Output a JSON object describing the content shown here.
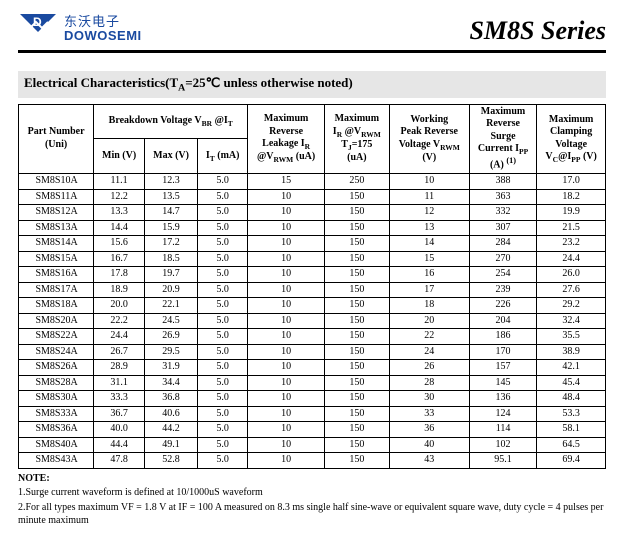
{
  "header": {
    "logo_cn": "东沃电子",
    "logo_en": "DOWOSEMI",
    "series_title": "SM8S Series"
  },
  "section_title_prefix": "Electrical Characteristics(T",
  "section_title_sub": "A",
  "section_title_suffix": "=25℃ unless otherwise noted)",
  "table": {
    "columns": {
      "pn": "Part Number\n(Uni)",
      "bv_group": "Breakdown Voltage V",
      "bv_group_sub1": "BR",
      "bv_group_mid": " @I",
      "bv_group_sub2": "T",
      "min": "Min (V)",
      "max": "Max (V)",
      "it": "I",
      "it_sub": "T",
      "it_suffix": " (mA)",
      "leak_l1": "Maximum",
      "leak_l2": "Reverse",
      "leak_l3a": "Leakage I",
      "leak_l3sub": "R",
      "leak_l4a": "@V",
      "leak_l4sub": "RWM",
      "leak_l4b": " (uA)",
      "ir_l1": "Maximum",
      "ir_l2a": "I",
      "ir_l2sub1": "R",
      "ir_l2b": " @V",
      "ir_l2sub2": "RWM",
      "ir_l3a": "T",
      "ir_l3sub": "J",
      "ir_l3b": "=175",
      "ir_l4": "(uA)",
      "vr_l1": "Working",
      "vr_l2": "Peak Reverse",
      "vr_l3a": "Voltage V",
      "vr_l3sub": "RWM",
      "vr_l4": "(V)",
      "surge_l1": "Maximum",
      "surge_l2": "Reverse",
      "surge_l3": "Surge",
      "surge_l4a": "Current I",
      "surge_l4sub": "PP",
      "surge_l5a": "(A) ",
      "surge_l5sup": "(1)",
      "clamp_l1": "Maximum",
      "clamp_l2": "Clamping",
      "clamp_l3": "Voltage",
      "clamp_l4a": "V",
      "clamp_l4sub1": "C",
      "clamp_l4b": "@I",
      "clamp_l4sub2": "PP",
      "clamp_l4c": " (V)"
    },
    "rows": [
      {
        "pn": "SM8S10A",
        "min": "11.1",
        "max": "12.3",
        "it": "5.0",
        "leak": "15",
        "ir": "250",
        "vr": "10",
        "surge": "388",
        "clamp": "17.0"
      },
      {
        "pn": "SM8S11A",
        "min": "12.2",
        "max": "13.5",
        "it": "5.0",
        "leak": "10",
        "ir": "150",
        "vr": "11",
        "surge": "363",
        "clamp": "18.2"
      },
      {
        "pn": "SM8S12A",
        "min": "13.3",
        "max": "14.7",
        "it": "5.0",
        "leak": "10",
        "ir": "150",
        "vr": "12",
        "surge": "332",
        "clamp": "19.9"
      },
      {
        "pn": "SM8S13A",
        "min": "14.4",
        "max": "15.9",
        "it": "5.0",
        "leak": "10",
        "ir": "150",
        "vr": "13",
        "surge": "307",
        "clamp": "21.5"
      },
      {
        "pn": "SM8S14A",
        "min": "15.6",
        "max": "17.2",
        "it": "5.0",
        "leak": "10",
        "ir": "150",
        "vr": "14",
        "surge": "284",
        "clamp": "23.2"
      },
      {
        "pn": "SM8S15A",
        "min": "16.7",
        "max": "18.5",
        "it": "5.0",
        "leak": "10",
        "ir": "150",
        "vr": "15",
        "surge": "270",
        "clamp": "24.4"
      },
      {
        "pn": "SM8S16A",
        "min": "17.8",
        "max": "19.7",
        "it": "5.0",
        "leak": "10",
        "ir": "150",
        "vr": "16",
        "surge": "254",
        "clamp": "26.0"
      },
      {
        "pn": "SM8S17A",
        "min": "18.9",
        "max": "20.9",
        "it": "5.0",
        "leak": "10",
        "ir": "150",
        "vr": "17",
        "surge": "239",
        "clamp": "27.6"
      },
      {
        "pn": "SM8S18A",
        "min": "20.0",
        "max": "22.1",
        "it": "5.0",
        "leak": "10",
        "ir": "150",
        "vr": "18",
        "surge": "226",
        "clamp": "29.2"
      },
      {
        "pn": "SM8S20A",
        "min": "22.2",
        "max": "24.5",
        "it": "5.0",
        "leak": "10",
        "ir": "150",
        "vr": "20",
        "surge": "204",
        "clamp": "32.4"
      },
      {
        "pn": "SM8S22A",
        "min": "24.4",
        "max": "26.9",
        "it": "5.0",
        "leak": "10",
        "ir": "150",
        "vr": "22",
        "surge": "186",
        "clamp": "35.5"
      },
      {
        "pn": "SM8S24A",
        "min": "26.7",
        "max": "29.5",
        "it": "5.0",
        "leak": "10",
        "ir": "150",
        "vr": "24",
        "surge": "170",
        "clamp": "38.9"
      },
      {
        "pn": "SM8S26A",
        "min": "28.9",
        "max": "31.9",
        "it": "5.0",
        "leak": "10",
        "ir": "150",
        "vr": "26",
        "surge": "157",
        "clamp": "42.1"
      },
      {
        "pn": "SM8S28A",
        "min": "31.1",
        "max": "34.4",
        "it": "5.0",
        "leak": "10",
        "ir": "150",
        "vr": "28",
        "surge": "145",
        "clamp": "45.4"
      },
      {
        "pn": "SM8S30A",
        "min": "33.3",
        "max": "36.8",
        "it": "5.0",
        "leak": "10",
        "ir": "150",
        "vr": "30",
        "surge": "136",
        "clamp": "48.4"
      },
      {
        "pn": "SM8S33A",
        "min": "36.7",
        "max": "40.6",
        "it": "5.0",
        "leak": "10",
        "ir": "150",
        "vr": "33",
        "surge": "124",
        "clamp": "53.3"
      },
      {
        "pn": "SM8S36A",
        "min": "40.0",
        "max": "44.2",
        "it": "5.0",
        "leak": "10",
        "ir": "150",
        "vr": "36",
        "surge": "114",
        "clamp": "58.1"
      },
      {
        "pn": "SM8S40A",
        "min": "44.4",
        "max": "49.1",
        "it": "5.0",
        "leak": "10",
        "ir": "150",
        "vr": "40",
        "surge": "102",
        "clamp": "64.5"
      },
      {
        "pn": "SM8S43A",
        "min": "47.8",
        "max": "52.8",
        "it": "5.0",
        "leak": "10",
        "ir": "150",
        "vr": "43",
        "surge": "95.1",
        "clamp": "69.4"
      }
    ]
  },
  "notes": {
    "heading": "NOTE:",
    "n1": "1.Surge current waveform is defined at 10/1000uS waveform",
    "n2": "2.For all types maximum VF = 1.8 V at IF = 100 A measured on 8.3 ms single half sine-wave or equivalent square wave, duty cycle = 4 pulses per minute maximum"
  },
  "colors": {
    "logo": "#1a4aa0",
    "section_bg": "#e6e6e6"
  }
}
